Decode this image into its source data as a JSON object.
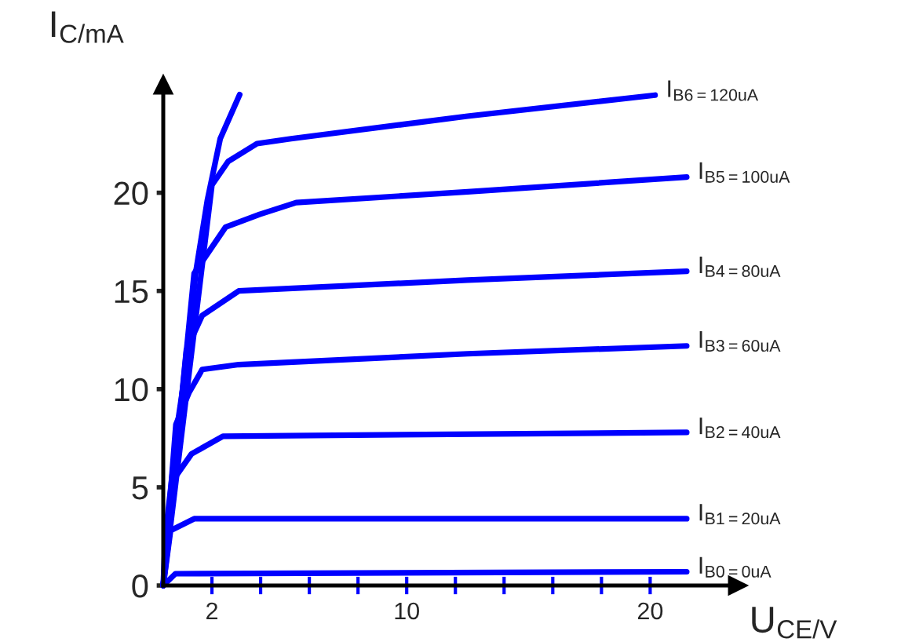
{
  "chart_data": {
    "type": "line",
    "xlabel": "U$_{CE/V}$",
    "ylabel": "I$_{C/mA}$",
    "xlim": [
      0,
      23.6
    ],
    "ylim": [
      0,
      25.5
    ],
    "xticks": [
      {
        "value": 2,
        "label": "2"
      },
      {
        "value": 4,
        "label": null
      },
      {
        "value": 6,
        "label": null
      },
      {
        "value": 8,
        "label": null
      },
      {
        "value": 10,
        "label": "10"
      },
      {
        "value": 12,
        "label": null
      },
      {
        "value": 14,
        "label": null
      },
      {
        "value": 16,
        "label": null
      },
      {
        "value": 18,
        "label": null
      },
      {
        "value": 20,
        "label": "20"
      }
    ],
    "yticks": [
      0,
      5,
      10,
      15,
      20
    ],
    "grid": false,
    "marker": "none",
    "line_style": "solid",
    "series": [
      {
        "color": "#0000ff",
        "x": [
          0,
          0.09,
          0.34,
          0.62,
          0.99,
          1.33,
          1.81,
          2.34,
          3.14
        ],
        "values": [
          0,
          2.6,
          5.3,
          8.5,
          11.6,
          15.9,
          19.6,
          22.75,
          25.0
        ]
      },
      {
        "name": "I$_{B0=0uA}$",
        "color": "#0000ff",
        "x": [
          0,
          0.5,
          21.5
        ],
        "values": [
          0,
          0.6,
          0.7
        ]
      },
      {
        "name": "I$_{B1=20uA}$",
        "color": "#0000ff",
        "x": [
          0,
          0.3,
          1.27,
          21.5
        ],
        "values": [
          0,
          2.8,
          3.4,
          3.4
        ]
      },
      {
        "name": "I$_{B2=40uA}$",
        "color": "#0000ff",
        "x": [
          0,
          0.37,
          1.16,
          2.45,
          21.5
        ],
        "values": [
          0,
          5.3,
          6.7,
          7.6,
          7.8
        ]
      },
      {
        "name": "I$_{B3=60uA}$",
        "color": "#0000ff",
        "x": [
          0,
          0.52,
          1.05,
          1.6,
          3.1,
          12.5,
          21.5
        ],
        "values": [
          0,
          8.2,
          9.8,
          11.0,
          11.25,
          11.8,
          12.2
        ]
      },
      {
        "name": "I$_{B4=80uA}$",
        "color": "#0000ff",
        "x": [
          0,
          0.95,
          1.6,
          3.1,
          12.5,
          21.5
        ],
        "values": [
          0,
          12.0,
          13.75,
          15.0,
          15.55,
          16.0
        ]
      },
      {
        "name": "I$_{B5=100uA}$",
        "color": "#0000ff",
        "x": [
          0,
          1.27,
          2.56,
          3.96,
          5.46,
          12.5,
          21.5
        ],
        "values": [
          0,
          15.9,
          18.25,
          18.9,
          19.5,
          20.05,
          20.8
        ]
      },
      {
        "name": "I$_{B6=120uA}$",
        "color": "#0000ff",
        "x": [
          0,
          2.0,
          2.67,
          3.85,
          5.25,
          12.5,
          20.2
        ],
        "values": [
          0,
          20.4,
          21.6,
          22.5,
          22.75,
          23.9,
          24.97
        ]
      }
    ]
  }
}
